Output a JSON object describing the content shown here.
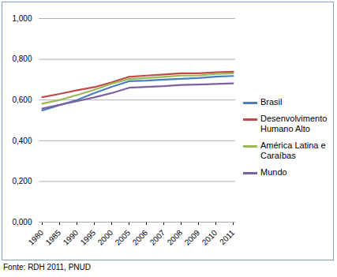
{
  "chart_data": {
    "type": "line",
    "categories": [
      "1980",
      "1985",
      "1990",
      "1995",
      "2000",
      "2005",
      "2006",
      "2007",
      "2008",
      "2009",
      "2010",
      "2011"
    ],
    "series": [
      {
        "name": "Brasil",
        "color": "#4a7ebb",
        "values": [
          0.549,
          0.575,
          0.6,
          0.634,
          0.665,
          0.692,
          0.695,
          0.7,
          0.704,
          0.708,
          0.715,
          0.718
        ]
      },
      {
        "name": "Desenvolvimento Humano Alto",
        "color": "#be4b48",
        "values": [
          0.614,
          0.63,
          0.648,
          0.663,
          0.687,
          0.714,
          0.72,
          0.725,
          0.731,
          0.731,
          0.736,
          0.739
        ]
      },
      {
        "name": "América Latina e Caraíbas",
        "color": "#98b954",
        "values": [
          0.582,
          0.6,
          0.624,
          0.65,
          0.68,
          0.703,
          0.708,
          0.714,
          0.72,
          0.72,
          0.728,
          0.731
        ]
      },
      {
        "name": "Mundo",
        "color": "#7d60a0",
        "values": [
          0.558,
          0.576,
          0.594,
          0.613,
          0.634,
          0.66,
          0.664,
          0.668,
          0.674,
          0.676,
          0.679,
          0.682
        ]
      }
    ],
    "ylim": [
      0,
      1
    ],
    "yticks": [
      {
        "value": 0,
        "label": "0,000"
      },
      {
        "value": 0.2,
        "label": "0,200"
      },
      {
        "value": 0.4,
        "label": "0,400"
      },
      {
        "value": 0.6,
        "label": "0,600"
      },
      {
        "value": 0.8,
        "label": "0,800"
      },
      {
        "value": 1,
        "label": "1,000"
      }
    ],
    "grid": true,
    "legend": "right",
    "caption": "Fonte: RDH 2011, PNUD"
  }
}
